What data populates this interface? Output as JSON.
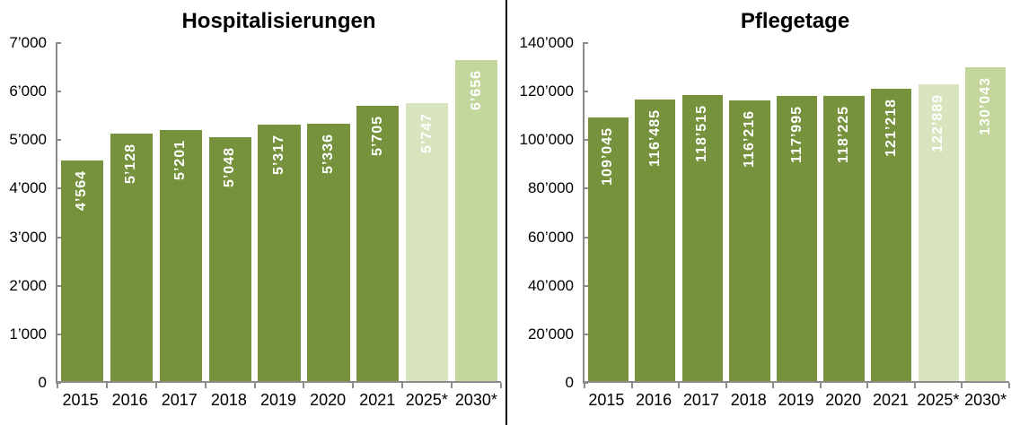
{
  "colors": {
    "bar_actual": "#76923C",
    "bar_forecast_2025": "#D7E4BD",
    "bar_forecast_2030": "#C3D69B",
    "bar_label_text": "#FFFFFF",
    "axis_line": "#8C8C8C",
    "tick_text": "#000000",
    "divider": "#000000",
    "background": "#FFFFFF"
  },
  "chart_data": [
    {
      "type": "bar",
      "title": "Hospitalisierungen",
      "categories": [
        "2015",
        "2016",
        "2017",
        "2018",
        "2019",
        "2020",
        "2021",
        "2025*",
        "2030*"
      ],
      "values": [
        4564,
        5128,
        5201,
        5048,
        5317,
        5336,
        5705,
        5747,
        6656
      ],
      "value_labels": [
        "4’564",
        "5’128",
        "5’201",
        "5’048",
        "5’317",
        "5’336",
        "5’705",
        "5’747",
        "6’656"
      ],
      "bar_colors": [
        "#76923C",
        "#76923C",
        "#76923C",
        "#76923C",
        "#76923C",
        "#76923C",
        "#76923C",
        "#D7E4BD",
        "#C3D69B"
      ],
      "xlabel": "",
      "ylabel": "",
      "ylim": [
        0,
        7000
      ],
      "ytick_labels": [
        "7’000",
        "6’000",
        "5’000",
        "4’000",
        "3’000",
        "2’000",
        "1’000",
        "0"
      ],
      "grid": false,
      "legend": "none"
    },
    {
      "type": "bar",
      "title": "Pflegetage",
      "categories": [
        "2015",
        "2016",
        "2017",
        "2018",
        "2019",
        "2020",
        "2021",
        "2025*",
        "2030*"
      ],
      "values": [
        109045,
        116485,
        118515,
        116216,
        117995,
        118225,
        121218,
        122889,
        130043
      ],
      "value_labels": [
        "109’045",
        "116’485",
        "118’515",
        "116’216",
        "117’995",
        "118’225",
        "121’218",
        "122’889",
        "130’043"
      ],
      "bar_colors": [
        "#76923C",
        "#76923C",
        "#76923C",
        "#76923C",
        "#76923C",
        "#76923C",
        "#76923C",
        "#D7E4BD",
        "#C3D69B"
      ],
      "xlabel": "",
      "ylabel": "",
      "ylim": [
        0,
        140000
      ],
      "ytick_labels": [
        "140’000",
        "120’000",
        "100’000",
        "80’000",
        "60’000",
        "40’000",
        "20’000",
        "0"
      ],
      "grid": false,
      "legend": "none"
    }
  ]
}
